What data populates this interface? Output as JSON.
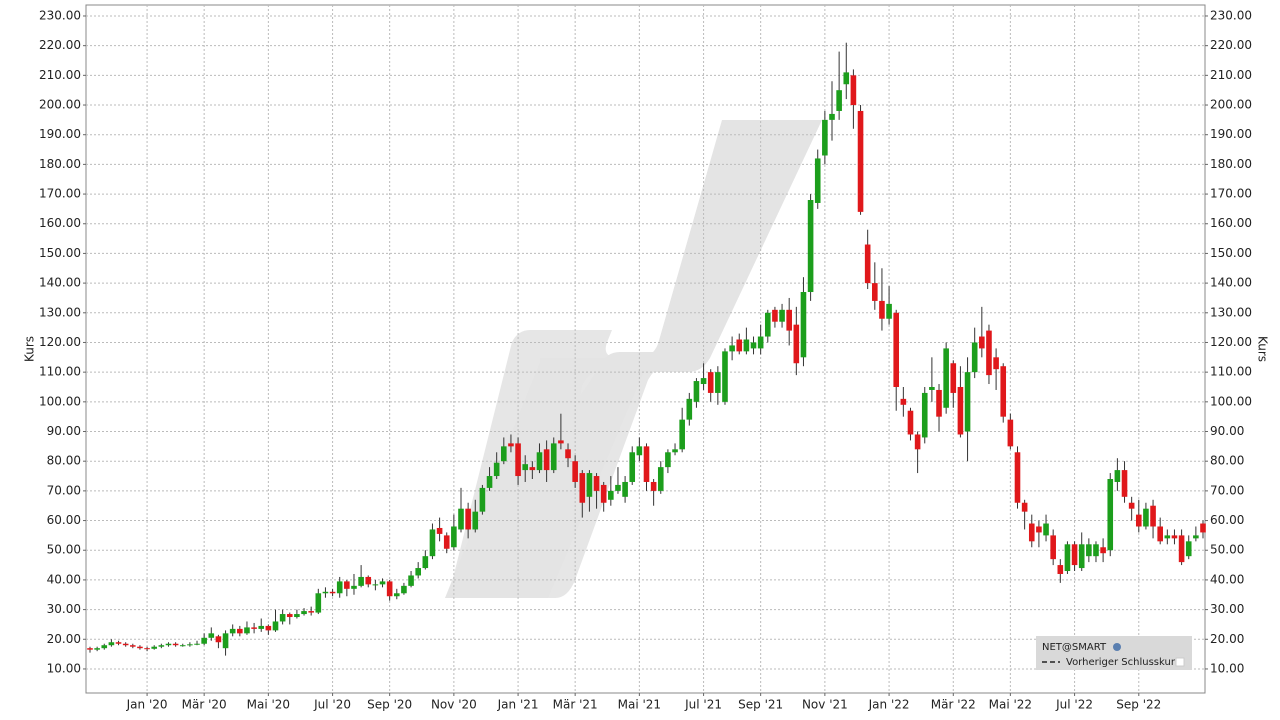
{
  "chart_data": {
    "type": "candlestick",
    "ylabel": "Kurs",
    "ylim": [
      1.9,
      233.7
    ],
    "yticks": [
      {
        "value": 10,
        "label": "10.00"
      },
      {
        "value": 20,
        "label": "20.00"
      },
      {
        "value": 30,
        "label": "30.00"
      },
      {
        "value": 40,
        "label": "40.00"
      },
      {
        "value": 50,
        "label": "50.00"
      },
      {
        "value": 60,
        "label": "60.00"
      },
      {
        "value": 70,
        "label": "70.00"
      },
      {
        "value": 80,
        "label": "80.00"
      },
      {
        "value": 90,
        "label": "90.00"
      },
      {
        "value": 100,
        "label": "100.00"
      },
      {
        "value": 110,
        "label": "110.00"
      },
      {
        "value": 120,
        "label": "120.00"
      },
      {
        "value": 130,
        "label": "130.00"
      },
      {
        "value": 140,
        "label": "140.00"
      },
      {
        "value": 150,
        "label": "150.00"
      },
      {
        "value": 160,
        "label": "160.00"
      },
      {
        "value": 170,
        "label": "170.00"
      },
      {
        "value": 180,
        "label": "180.00"
      },
      {
        "value": 190,
        "label": "190.00"
      },
      {
        "value": 200,
        "label": "200.00"
      },
      {
        "value": 210,
        "label": "210.00"
      },
      {
        "value": 220,
        "label": "220.00"
      },
      {
        "value": 230,
        "label": "230.00"
      }
    ],
    "grid": true,
    "categories": [
      null,
      null,
      null,
      null,
      null,
      null,
      null,
      null,
      "Jan '20",
      null,
      null,
      null,
      null,
      null,
      null,
      null,
      "Mär '20",
      null,
      null,
      null,
      null,
      null,
      null,
      null,
      null,
      "Mai '20",
      null,
      null,
      null,
      null,
      null,
      null,
      null,
      null,
      "Jul '20",
      null,
      null,
      null,
      null,
      null,
      null,
      null,
      "Sep '20",
      null,
      null,
      null,
      null,
      null,
      null,
      null,
      null,
      "Nov '20",
      null,
      null,
      null,
      null,
      null,
      null,
      null,
      null,
      "Jan '21",
      null,
      null,
      null,
      null,
      null,
      null,
      null,
      "Mär '21",
      null,
      null,
      null,
      null,
      null,
      null,
      null,
      null,
      "Mai '21",
      null,
      null,
      null,
      null,
      null,
      null,
      null,
      null,
      "Jul '21",
      null,
      null,
      null,
      null,
      null,
      null,
      null,
      "Sep '21",
      null,
      null,
      null,
      null,
      null,
      null,
      null,
      null,
      "Nov '21",
      null,
      null,
      null,
      null,
      null,
      null,
      null,
      null,
      "Jan '22",
      null,
      null,
      null,
      null,
      null,
      null,
      null,
      null,
      "Mär '22",
      null,
      null,
      null,
      null,
      null,
      null,
      null,
      "Mai '22",
      null,
      null,
      null,
      null,
      null,
      null,
      null,
      null,
      "Jul '22",
      null,
      null,
      null,
      null,
      null,
      null,
      null,
      null,
      "Sep '22",
      null,
      null,
      null,
      null,
      null,
      null,
      null,
      null,
      null
    ],
    "series": [
      {
        "name": "NET@SMART",
        "up_color": "#1c9e1c",
        "down_color": "#e0181b",
        "open": [
          17,
          16.5,
          17,
          18,
          19,
          18.5,
          18,
          17.5,
          17,
          16.8,
          17.5,
          18,
          18.5,
          18,
          18,
          18.3,
          18.5,
          20.5,
          21,
          17,
          22,
          23.5,
          22,
          24,
          23.5,
          24.5,
          23,
          26,
          28.5,
          27.5,
          28.5,
          29.5,
          29,
          35.5,
          36,
          35.5,
          39.5,
          37,
          38,
          41,
          38.5,
          38.5,
          39.5,
          34.5,
          35.5,
          38,
          41.5,
          44,
          48,
          57.5,
          55,
          51,
          57,
          64,
          57,
          63,
          71,
          75,
          80,
          86,
          86,
          77,
          78,
          77,
          84,
          77,
          87,
          84,
          80,
          76,
          68,
          75,
          72,
          67,
          70,
          68,
          73,
          82,
          85,
          73,
          70,
          78,
          83,
          84,
          94,
          100,
          106,
          110,
          103,
          100,
          117,
          121,
          117,
          118,
          118,
          122,
          131,
          127,
          131,
          126,
          115,
          137,
          167,
          183,
          195,
          198,
          207,
          210,
          198,
          153,
          140,
          134,
          128,
          130,
          101,
          97,
          89,
          88,
          104,
          104,
          98,
          113,
          105,
          90,
          110,
          122,
          124,
          115,
          112,
          94,
          83,
          66,
          59,
          58,
          55,
          55,
          45,
          43,
          52,
          44,
          48,
          48,
          51,
          50,
          73,
          77,
          66,
          62,
          58,
          65,
          58,
          54,
          55,
          55,
          48,
          54,
          59
        ],
        "high": [
          17.5,
          17.5,
          18.5,
          20,
          19.5,
          19,
          18.5,
          18,
          17.5,
          18,
          18.5,
          19,
          19,
          18.5,
          19,
          19.5,
          22,
          24,
          21.5,
          23,
          25,
          24.5,
          26,
          25.5,
          27,
          25,
          30,
          30,
          29,
          30,
          30.5,
          31,
          37,
          37.5,
          37,
          41,
          40,
          42,
          45,
          41.5,
          40,
          40.5,
          40,
          37,
          39,
          43,
          46,
          50,
          59,
          61,
          56,
          62,
          71,
          66,
          67,
          72,
          78,
          83,
          88,
          89,
          88,
          82,
          80,
          86,
          87,
          88,
          96,
          86,
          82,
          77,
          77,
          76,
          73,
          75,
          78,
          75,
          85,
          88,
          86,
          74,
          80,
          84,
          86,
          98,
          103,
          108,
          113,
          111,
          112,
          118,
          122,
          123,
          125,
          122,
          126,
          131,
          132,
          133,
          135,
          132,
          142,
          170,
          185,
          198,
          208,
          218,
          221,
          212,
          200,
          158,
          147,
          145,
          139,
          131,
          105,
          98,
          90,
          105,
          115,
          106,
          120,
          114,
          112,
          115,
          125,
          132,
          126,
          118,
          113,
          96,
          85,
          67,
          62,
          60,
          62,
          57,
          47,
          53,
          53,
          56,
          54,
          53,
          54,
          76,
          81,
          80,
          68,
          67,
          66,
          67,
          61,
          57,
          57,
          57,
          55,
          58,
          60
        ],
        "low": [
          15.5,
          16,
          16.5,
          17.5,
          18,
          17.5,
          17,
          16.5,
          16,
          16.5,
          17,
          17.5,
          17.5,
          17.5,
          17.5,
          18,
          18,
          19.5,
          17,
          14.5,
          21,
          21,
          21.5,
          22,
          22.5,
          21.5,
          22.5,
          25,
          25,
          27,
          28,
          28,
          28.5,
          34,
          34.5,
          34,
          34.5,
          35,
          37.5,
          37.5,
          36.5,
          37.5,
          33,
          33.5,
          35,
          37.5,
          40.5,
          43.5,
          47,
          53,
          49,
          50,
          56,
          54,
          56,
          62,
          70,
          74,
          79,
          83,
          72,
          73,
          74,
          76,
          73,
          76,
          84,
          78,
          71,
          61,
          63,
          64,
          63,
          65,
          69,
          66,
          72,
          80,
          70,
          65,
          69,
          76,
          82,
          83,
          92,
          98,
          104,
          100,
          99,
          99,
          114,
          116,
          116,
          116,
          116,
          120,
          125,
          125,
          119,
          109,
          112,
          134,
          165,
          180,
          188,
          195,
          202,
          192,
          163,
          138,
          131,
          124,
          126,
          97,
          95,
          87,
          76,
          86,
          100,
          90,
          96,
          98,
          88,
          80,
          108,
          115,
          106,
          104,
          93,
          84,
          64,
          57,
          51,
          51,
          53,
          45,
          39,
          42,
          43,
          43,
          46,
          46,
          46,
          48,
          70,
          66,
          60,
          56,
          57,
          54,
          52,
          52,
          52,
          45,
          47,
          53,
          54
        ],
        "close": [
          16.5,
          17,
          18,
          19,
          18.5,
          18,
          17.5,
          17,
          16.8,
          17.5,
          18,
          18.5,
          18,
          18,
          18.3,
          18.5,
          20.5,
          22,
          19,
          22,
          23.5,
          22,
          24,
          23.5,
          24.5,
          23,
          26,
          28.5,
          27.5,
          28.5,
          29.5,
          29,
          35.5,
          36,
          35.5,
          39.5,
          37,
          38,
          41,
          38.5,
          38.5,
          39.5,
          34.5,
          35.5,
          38,
          41.5,
          44,
          48,
          57,
          55.5,
          50.5,
          58,
          64,
          57,
          63,
          71,
          75,
          79.5,
          85,
          85,
          75,
          79,
          77,
          83,
          77,
          86,
          86,
          81,
          73,
          66,
          76,
          70,
          66,
          70,
          72,
          73,
          83,
          85,
          73,
          70,
          78,
          83,
          84,
          94,
          101,
          107,
          108,
          103,
          110,
          117,
          119,
          117,
          121,
          120,
          122,
          130,
          127,
          131,
          124,
          113,
          137,
          168,
          182,
          195,
          197,
          205,
          211,
          200,
          164,
          140,
          134,
          128,
          133,
          105,
          99,
          89,
          84,
          103,
          105,
          95,
          118,
          103,
          89,
          110,
          120,
          118,
          109,
          111,
          95,
          85,
          66,
          63,
          53,
          56,
          59,
          47,
          42,
          52,
          45,
          52,
          52,
          52,
          49,
          74,
          77,
          68,
          64,
          58,
          64,
          58,
          53,
          55,
          54,
          46,
          53,
          55,
          56
        ]
      }
    ],
    "previous_close_label": "Vorheriger Schlusskurs"
  }
}
